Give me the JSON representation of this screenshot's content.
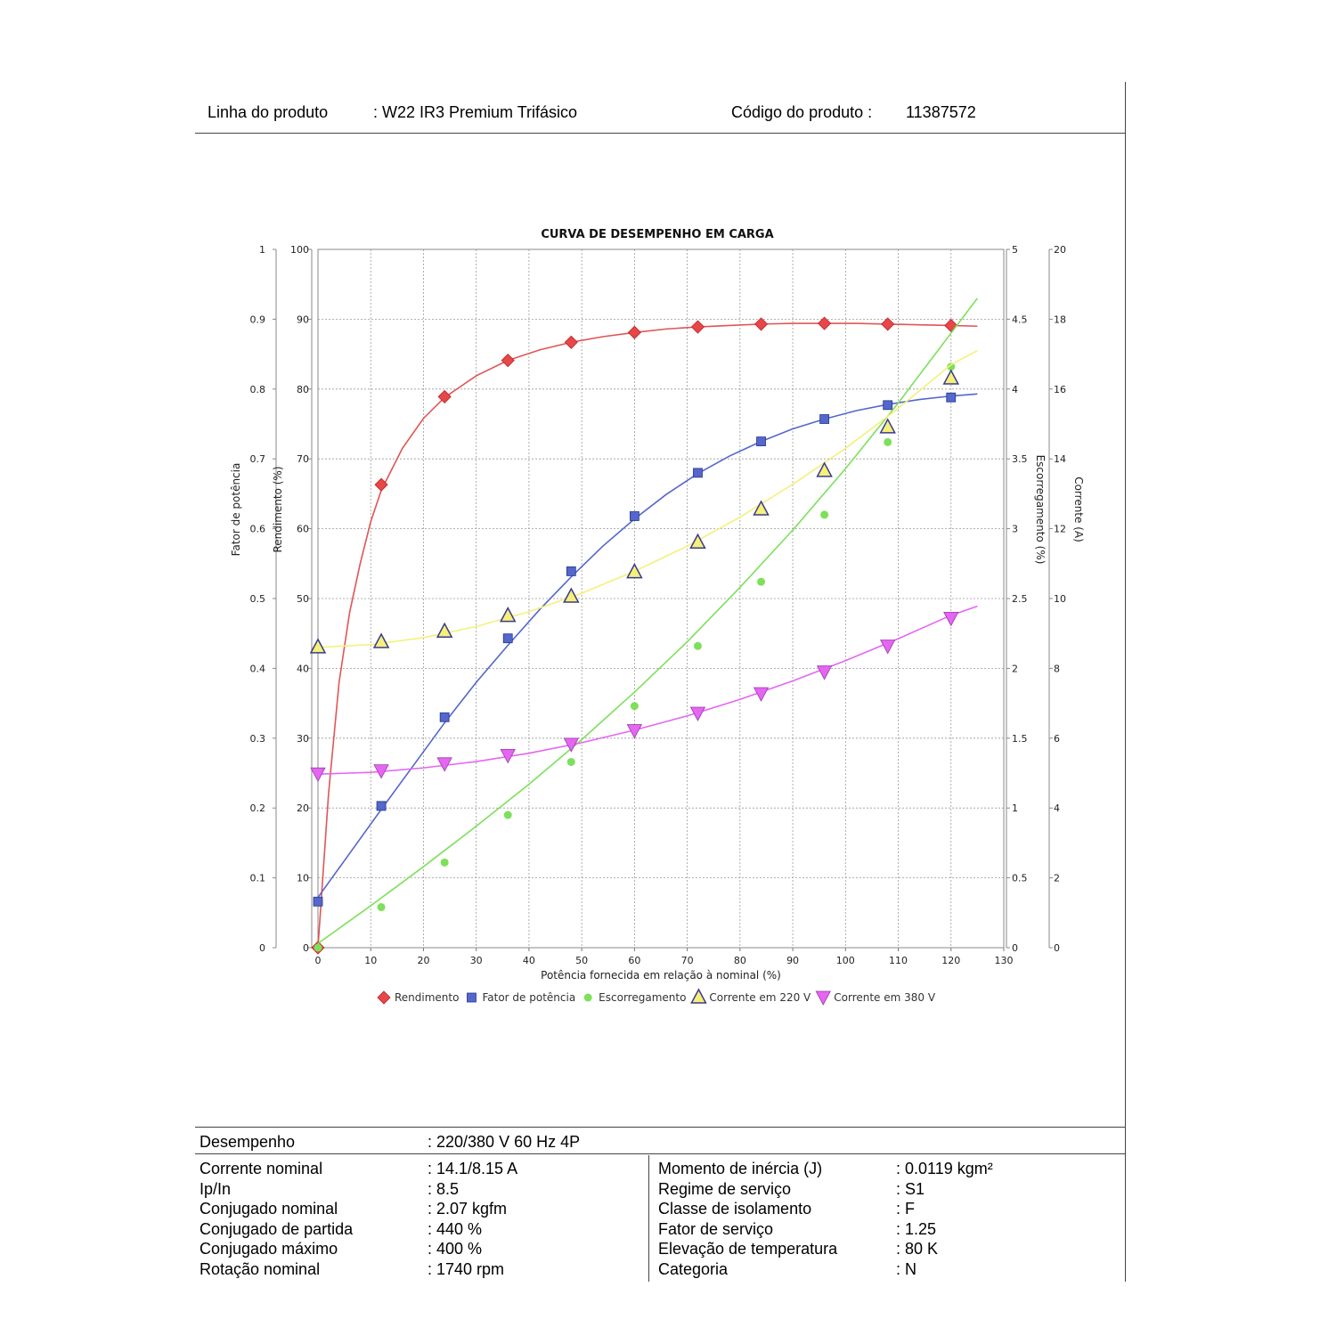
{
  "header": {
    "line_label": "Linha do produto",
    "line_value": ": W22 IR3 Premium Trifásico",
    "code_label": "Código do produto :",
    "code_value": "11387572"
  },
  "chart_data": {
    "type": "line",
    "title": "CURVA DE DESEMPENHO EM CARGA",
    "xlabel": "Potência fornecida em relação à nominal (%)",
    "xlim": [
      0,
      130
    ],
    "x_ticks": [
      0,
      10,
      20,
      30,
      40,
      50,
      60,
      70,
      80,
      90,
      100,
      110,
      120,
      130
    ],
    "axes": {
      "fator_potencia": {
        "label": "Fator de potência",
        "lim": [
          0,
          1
        ],
        "ticks": [
          "0",
          "0.1",
          "0.2",
          "0.3",
          "0.4",
          "0.5",
          "0.6",
          "0.7",
          "0.8",
          "0.9",
          "1"
        ]
      },
      "rendimento": {
        "label": "Rendimento (%)",
        "lim": [
          0,
          100
        ],
        "ticks": [
          "0",
          "10",
          "20",
          "30",
          "40",
          "50",
          "60",
          "70",
          "80",
          "90",
          "100"
        ]
      },
      "escorregamento": {
        "label": "Escorregamento (%)",
        "lim": [
          0,
          5
        ],
        "ticks": [
          "0",
          "0.5",
          "1",
          "1.5",
          "2",
          "2.5",
          "3",
          "3.5",
          "4",
          "4.5",
          "5"
        ]
      },
      "corrente": {
        "label": "Corrente (A)",
        "lim": [
          0,
          20
        ],
        "ticks": [
          "0",
          "2",
          "4",
          "6",
          "8",
          "10",
          "12",
          "14",
          "16",
          "18",
          "20"
        ]
      }
    },
    "grid": true,
    "legend_position": "bottom",
    "series": [
      {
        "name": "Rendimento",
        "axis": "rendimento",
        "color": "#e8474a",
        "marker": "diamond",
        "x": [
          0,
          12,
          24,
          36,
          48,
          60,
          72,
          84,
          96,
          108,
          120
        ],
        "values": [
          0,
          66.3,
          78.9,
          84.1,
          86.7,
          88.1,
          88.9,
          89.3,
          89.4,
          89.3,
          89.1
        ],
        "curve_x": [
          0,
          2,
          4,
          6,
          8,
          10,
          12,
          16,
          20,
          24,
          30,
          36,
          42,
          48,
          54,
          60,
          66,
          72,
          78,
          84,
          90,
          96,
          102,
          108,
          114,
          120,
          125
        ],
        "curve_y": [
          0,
          22,
          38,
          48,
          55,
          61,
          65.5,
          71.5,
          75.8,
          78.8,
          81.9,
          84.1,
          85.6,
          86.7,
          87.5,
          88.1,
          88.6,
          88.9,
          89.1,
          89.3,
          89.4,
          89.4,
          89.4,
          89.3,
          89.2,
          89.1,
          89.0
        ]
      },
      {
        "name": "Fator de potência",
        "axis": "fator_potencia",
        "color": "#5566cc",
        "marker": "square",
        "x": [
          0,
          12,
          24,
          36,
          48,
          60,
          72,
          84,
          96,
          108,
          120
        ],
        "values": [
          0.066,
          0.203,
          0.33,
          0.443,
          0.539,
          0.618,
          0.68,
          0.725,
          0.757,
          0.777,
          0.788
        ],
        "curve_x": [
          0,
          6,
          12,
          18,
          24,
          30,
          36,
          42,
          48,
          54,
          60,
          66,
          72,
          78,
          84,
          90,
          96,
          102,
          108,
          114,
          120,
          125
        ],
        "curve_y": [
          0.072,
          0.135,
          0.198,
          0.26,
          0.322,
          0.38,
          0.433,
          0.484,
          0.531,
          0.575,
          0.614,
          0.649,
          0.679,
          0.704,
          0.725,
          0.743,
          0.757,
          0.769,
          0.778,
          0.785,
          0.79,
          0.793
        ]
      },
      {
        "name": "Escorregamento",
        "axis": "escorregamento",
        "color": "#7de05a",
        "marker": "circle",
        "x": [
          0,
          12,
          24,
          36,
          48,
          60,
          72,
          84,
          96,
          108,
          120
        ],
        "values": [
          0,
          0.29,
          0.61,
          0.95,
          1.33,
          1.73,
          2.16,
          2.62,
          3.1,
          3.62,
          4.16
        ],
        "curve_x": [
          0,
          10,
          20,
          30,
          40,
          50,
          60,
          70,
          80,
          90,
          100,
          110,
          120,
          125
        ],
        "curve_y": [
          0.03,
          0.3,
          0.58,
          0.87,
          1.17,
          1.49,
          1.83,
          2.19,
          2.58,
          2.99,
          3.43,
          3.9,
          4.4,
          4.65
        ]
      },
      {
        "name": "Corrente em 220 V",
        "axis": "corrente",
        "color": "#f5f07a",
        "marker": "triangle-up",
        "x": [
          0,
          12,
          24,
          36,
          48,
          60,
          72,
          84,
          96,
          108,
          120
        ],
        "values": [
          8.6,
          8.75,
          9.05,
          9.5,
          10.05,
          10.75,
          11.6,
          12.55,
          13.65,
          14.9,
          16.3
        ],
        "curve_x": [
          0,
          10,
          20,
          30,
          40,
          50,
          60,
          70,
          80,
          90,
          100,
          110,
          120,
          125
        ],
        "curve_y": [
          8.6,
          8.68,
          8.88,
          9.2,
          9.62,
          10.15,
          10.78,
          11.5,
          12.33,
          13.27,
          14.3,
          15.45,
          16.7,
          17.1
        ]
      },
      {
        "name": "Corrente em 380 V",
        "axis": "corrente",
        "color": "#e466f2",
        "marker": "triangle-down",
        "x": [
          0,
          12,
          24,
          36,
          48,
          60,
          72,
          84,
          96,
          108,
          120
        ],
        "values": [
          4.97,
          5.06,
          5.26,
          5.5,
          5.82,
          6.21,
          6.71,
          7.27,
          7.89,
          8.63,
          9.43
        ],
        "curve_x": [
          0,
          10,
          20,
          30,
          40,
          50,
          60,
          70,
          80,
          90,
          100,
          110,
          120,
          125
        ],
        "curve_y": [
          4.97,
          5.02,
          5.15,
          5.33,
          5.57,
          5.87,
          6.23,
          6.64,
          7.11,
          7.64,
          8.22,
          8.85,
          9.52,
          9.78
        ]
      }
    ]
  },
  "specs": {
    "desempenho_label": "Desempenho",
    "desempenho_value": ": 220/380 V 60 Hz 4P",
    "left": [
      {
        "label": "Corrente nominal",
        "value": ": 14.1/8.15 A"
      },
      {
        "label": "Ip/In",
        "value": ": 8.5"
      },
      {
        "label": "Conjugado nominal",
        "value": ": 2.07 kgfm"
      },
      {
        "label": "Conjugado de partida",
        "value": ": 440 %"
      },
      {
        "label": "Conjugado máximo",
        "value": ": 400 %"
      },
      {
        "label": "Rotação nominal",
        "value": ": 1740 rpm"
      }
    ],
    "right": [
      {
        "label": "Momento de inércia (J)",
        "value": ": 0.0119 kgm²"
      },
      {
        "label": "Regime de serviço",
        "value": ": S1"
      },
      {
        "label": "Classe de isolamento",
        "value": ": F"
      },
      {
        "label": "Fator de serviço",
        "value": ": 1.25"
      },
      {
        "label": "Elevação de temperatura",
        "value": ": 80 K"
      },
      {
        "label": "Categoria",
        "value": ": N"
      }
    ]
  }
}
